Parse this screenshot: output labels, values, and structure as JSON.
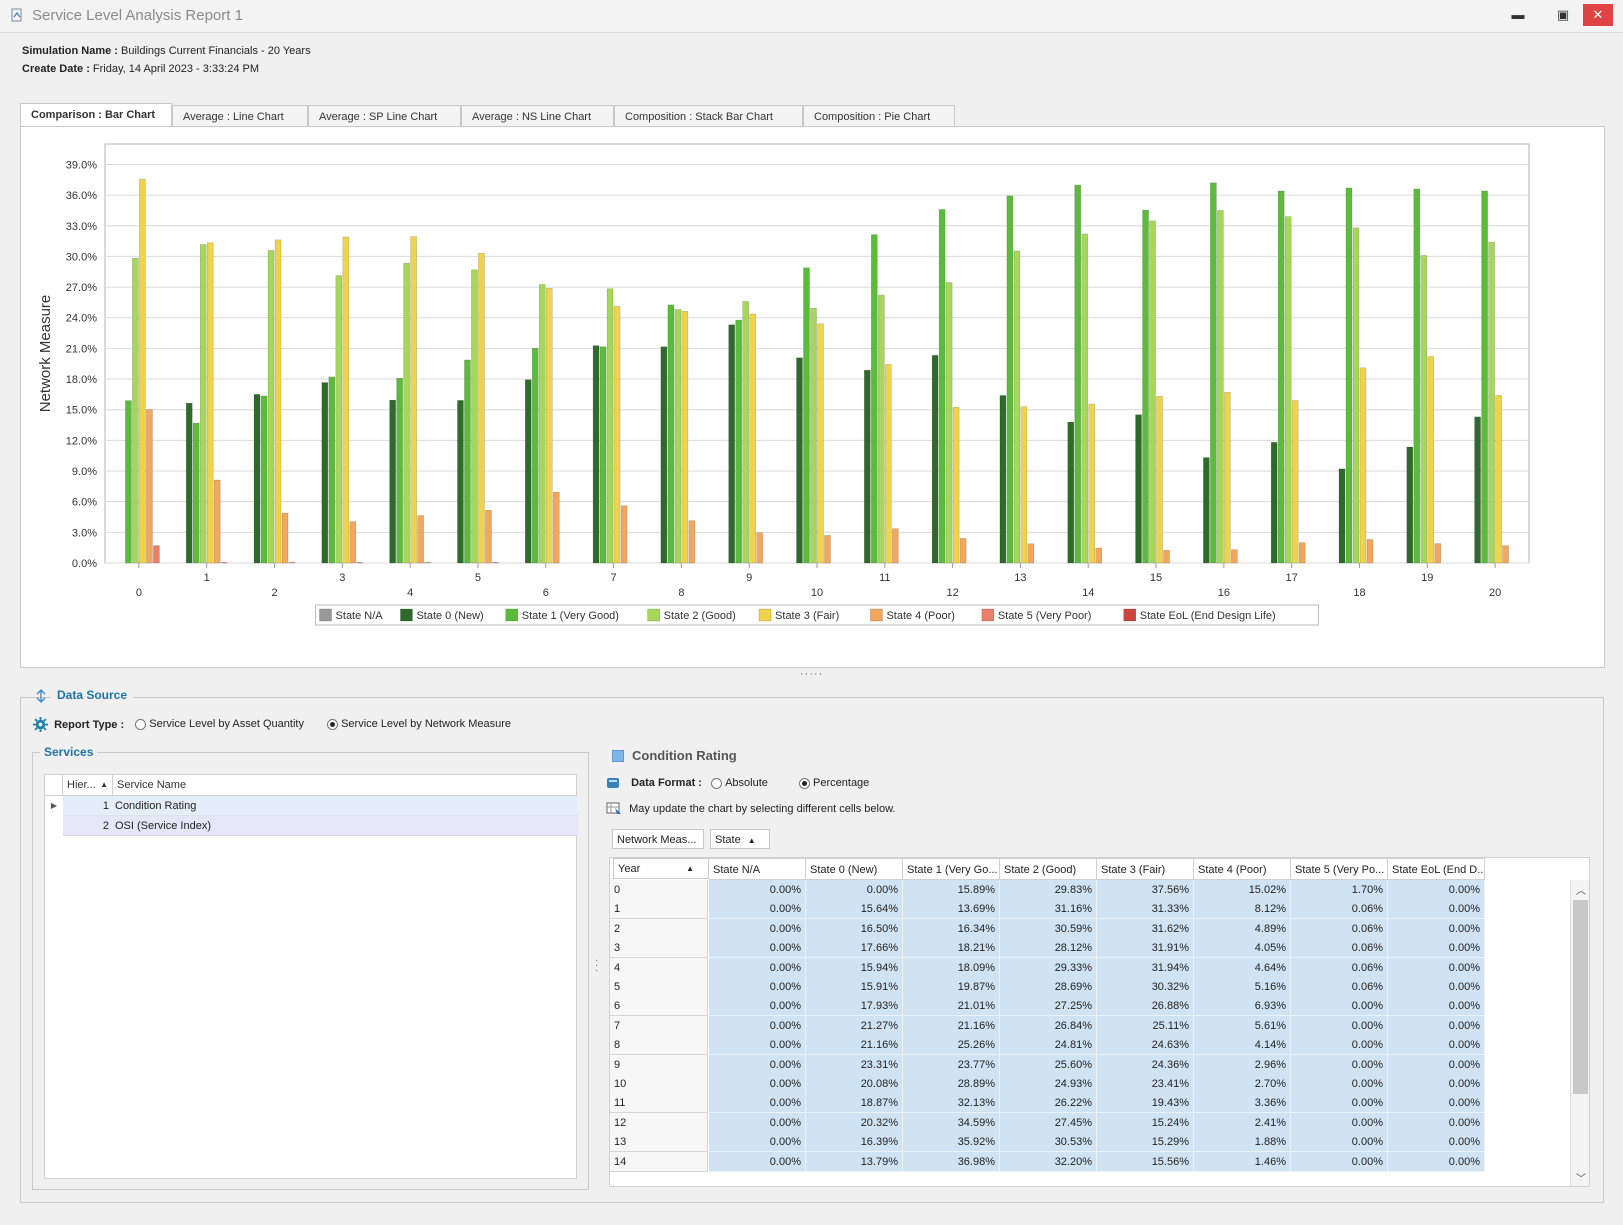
{
  "window": {
    "title": "Service Level Analysis Report 1",
    "minimize": "▬",
    "maximize": "▣",
    "close": "✕"
  },
  "header": {
    "sim_label": "Simulation Name :",
    "sim_value": "Buildings Current Financials - 20 Years",
    "date_label": "Create Date :",
    "date_value": "Friday, 14 April 2023 - 3:33:24 PM"
  },
  "tabs": [
    "Comparison : Bar Chart",
    "Average : Line Chart",
    "Average : SP Line Chart",
    "Average : NS Line Chart",
    "Composition : Stack Bar Chart",
    "Composition : Pie Chart"
  ],
  "splitter_grip": "·····",
  "chart_data": {
    "type": "bar",
    "ylabel": "Network Measure",
    "ylim": [
      0,
      41
    ],
    "yticks": [
      "0.0%",
      "3.0%",
      "6.0%",
      "9.0%",
      "12.0%",
      "15.0%",
      "18.0%",
      "21.0%",
      "24.0%",
      "27.0%",
      "30.0%",
      "33.0%",
      "36.0%",
      "39.0%"
    ],
    "categories": [
      "0",
      "1",
      "2",
      "3",
      "4",
      "5",
      "6",
      "7",
      "8",
      "9",
      "10",
      "11",
      "12",
      "13",
      "14",
      "15",
      "16",
      "17",
      "18",
      "19",
      "20"
    ],
    "legend_position": "bottom",
    "grid": true,
    "series": [
      {
        "name": "State N/A",
        "color": "#9a9a9a",
        "values": [
          0,
          0,
          0,
          0,
          0,
          0,
          0,
          0,
          0,
          0,
          0,
          0,
          0,
          0,
          0,
          0,
          0,
          0,
          0,
          0,
          0
        ]
      },
      {
        "name": "State 0 (New)",
        "color": "#2e6b2a",
        "values": [
          0.0,
          15.64,
          16.5,
          17.66,
          15.94,
          15.91,
          17.93,
          21.27,
          21.16,
          23.31,
          20.08,
          18.87,
          20.32,
          16.39,
          13.79,
          14.51,
          10.32,
          11.81,
          9.21,
          11.35,
          14.3
        ]
      },
      {
        "name": "State 1 (Very Good)",
        "color": "#5cbb3a",
        "values": [
          15.89,
          13.69,
          16.34,
          18.21,
          18.09,
          19.87,
          21.01,
          21.16,
          25.26,
          23.77,
          28.89,
          32.13,
          34.59,
          35.92,
          36.98,
          34.53,
          37.2,
          36.4,
          36.7,
          36.6,
          36.4
        ]
      },
      {
        "name": "State 2 (Good)",
        "color": "#a6d65a",
        "values": [
          29.83,
          31.16,
          30.59,
          28.12,
          29.33,
          28.69,
          27.25,
          26.84,
          24.81,
          25.6,
          24.93,
          26.22,
          27.45,
          30.53,
          32.2,
          33.48,
          34.5,
          33.9,
          32.8,
          30.1,
          31.4
        ]
      },
      {
        "name": "State 3 (Fair)",
        "color": "#f0d34c",
        "values": [
          37.56,
          31.33,
          31.62,
          31.91,
          31.94,
          30.32,
          26.88,
          25.11,
          24.63,
          24.36,
          23.41,
          19.43,
          15.24,
          15.29,
          15.56,
          16.31,
          16.7,
          15.9,
          19.1,
          20.2,
          16.4
        ]
      },
      {
        "name": "State 4 (Poor)",
        "color": "#f2a65e",
        "values": [
          15.02,
          8.12,
          4.89,
          4.05,
          4.64,
          5.16,
          6.93,
          5.61,
          4.14,
          2.96,
          2.7,
          3.36,
          2.41,
          1.88,
          1.46,
          1.25,
          1.3,
          2.0,
          2.3,
          1.9,
          1.7
        ]
      },
      {
        "name": "State 5 (Very Poor)",
        "color": "#e87f6a",
        "values": [
          1.7,
          0.06,
          0.06,
          0.06,
          0.06,
          0.06,
          0.0,
          0.0,
          0.0,
          0.0,
          0.0,
          0.0,
          0.0,
          0.0,
          0.0,
          0.0,
          0,
          0,
          0,
          0,
          0
        ]
      },
      {
        "name": "State EoL (End Design Life)",
        "color": "#c9453d",
        "values": [
          0,
          0,
          0,
          0,
          0,
          0,
          0,
          0,
          0,
          0,
          0,
          0,
          0,
          0,
          0,
          0,
          0,
          0,
          0,
          0,
          0
        ]
      }
    ]
  },
  "data_source": {
    "title": "Data Source",
    "report_type_label": "Report Type :",
    "option_quantity": "Service Level by Asset Quantity",
    "option_network": "Service Level by Network Measure",
    "selected": "network"
  },
  "services": {
    "title": "Services",
    "col_hier": "Hier...",
    "col_name": "Service Name",
    "rows": [
      {
        "hier": "1",
        "name": "Condition Rating"
      },
      {
        "hier": "2",
        "name": "OSI (Service Index)"
      }
    ]
  },
  "detail": {
    "title": "Condition Rating",
    "format_label": "Data Format :",
    "opt_absolute": "Absolute",
    "opt_percentage": "Percentage",
    "hint": "May update the chart by selecting different cells below.",
    "field_measure": "Network Meas...",
    "field_state": "State",
    "field_year": "Year",
    "columns": [
      "State N/A",
      "State 0 (New)",
      "State 1 (Very Go...",
      "State 2 (Good)",
      "State 3 (Fair)",
      "State 4 (Poor)",
      "State 5 (Very Po...",
      "State EoL (End D..."
    ],
    "rows": [
      {
        "year": "0",
        "cells": [
          "0.00%",
          "0.00%",
          "15.89%",
          "29.83%",
          "37.56%",
          "15.02%",
          "1.70%",
          "0.00%"
        ]
      },
      {
        "year": "1",
        "cells": [
          "0.00%",
          "15.64%",
          "13.69%",
          "31.16%",
          "31.33%",
          "8.12%",
          "0.06%",
          "0.00%"
        ]
      },
      {
        "year": "2",
        "cells": [
          "0.00%",
          "16.50%",
          "16.34%",
          "30.59%",
          "31.62%",
          "4.89%",
          "0.06%",
          "0.00%"
        ]
      },
      {
        "year": "3",
        "cells": [
          "0.00%",
          "17.66%",
          "18.21%",
          "28.12%",
          "31.91%",
          "4.05%",
          "0.06%",
          "0.00%"
        ]
      },
      {
        "year": "4",
        "cells": [
          "0.00%",
          "15.94%",
          "18.09%",
          "29.33%",
          "31.94%",
          "4.64%",
          "0.06%",
          "0.00%"
        ]
      },
      {
        "year": "5",
        "cells": [
          "0.00%",
          "15.91%",
          "19.87%",
          "28.69%",
          "30.32%",
          "5.16%",
          "0.06%",
          "0.00%"
        ]
      },
      {
        "year": "6",
        "cells": [
          "0.00%",
          "17.93%",
          "21.01%",
          "27.25%",
          "26.88%",
          "6.93%",
          "0.00%",
          "0.00%"
        ]
      },
      {
        "year": "7",
        "cells": [
          "0.00%",
          "21.27%",
          "21.16%",
          "26.84%",
          "25.11%",
          "5.61%",
          "0.00%",
          "0.00%"
        ]
      },
      {
        "year": "8",
        "cells": [
          "0.00%",
          "21.16%",
          "25.26%",
          "24.81%",
          "24.63%",
          "4.14%",
          "0.00%",
          "0.00%"
        ]
      },
      {
        "year": "9",
        "cells": [
          "0.00%",
          "23.31%",
          "23.77%",
          "25.60%",
          "24.36%",
          "2.96%",
          "0.00%",
          "0.00%"
        ]
      },
      {
        "year": "10",
        "cells": [
          "0.00%",
          "20.08%",
          "28.89%",
          "24.93%",
          "23.41%",
          "2.70%",
          "0.00%",
          "0.00%"
        ]
      },
      {
        "year": "11",
        "cells": [
          "0.00%",
          "18.87%",
          "32.13%",
          "26.22%",
          "19.43%",
          "3.36%",
          "0.00%",
          "0.00%"
        ]
      },
      {
        "year": "12",
        "cells": [
          "0.00%",
          "20.32%",
          "34.59%",
          "27.45%",
          "15.24%",
          "2.41%",
          "0.00%",
          "0.00%"
        ]
      },
      {
        "year": "13",
        "cells": [
          "0.00%",
          "16.39%",
          "35.92%",
          "30.53%",
          "15.29%",
          "1.88%",
          "0.00%",
          "0.00%"
        ]
      },
      {
        "year": "14",
        "cells": [
          "0.00%",
          "13.79%",
          "36.98%",
          "32.20%",
          "15.56%",
          "1.46%",
          "0.00%",
          "0.00%"
        ]
      }
    ]
  }
}
